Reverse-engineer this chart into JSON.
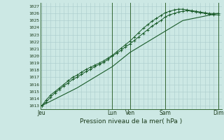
{
  "background_color": "#cce8e4",
  "grid_color": "#aacccc",
  "line_color": "#1a5c2a",
  "vline_color": "#336633",
  "title": "Pression niveau de la mer( hPa )",
  "ylabel_values": [
    1013,
    1014,
    1015,
    1016,
    1017,
    1018,
    1019,
    1020,
    1021,
    1022,
    1023,
    1024,
    1025,
    1026,
    1027
  ],
  "ylim": [
    1012.5,
    1027.5
  ],
  "x_ticks": [
    0,
    96,
    120,
    168,
    240
  ],
  "x_tick_labels": [
    "Jeu",
    "Lun",
    "Ven",
    "Sam",
    "Dim"
  ],
  "vlines_x": [
    96,
    120,
    168,
    240
  ],
  "xlim": [
    -2,
    245
  ],
  "line1_x": [
    0,
    6,
    12,
    18,
    24,
    30,
    36,
    42,
    48,
    54,
    60,
    66,
    72,
    78,
    84,
    90,
    96,
    102,
    108,
    114,
    120,
    126,
    132,
    138,
    144,
    150,
    156,
    162,
    168,
    174,
    180,
    186,
    192,
    198,
    204,
    210,
    216,
    222,
    228,
    234,
    240
  ],
  "line1_y": [
    1013.0,
    1013.5,
    1014.2,
    1014.8,
    1015.3,
    1015.8,
    1016.2,
    1016.7,
    1017.0,
    1017.4,
    1017.8,
    1018.1,
    1018.5,
    1018.8,
    1019.1,
    1019.5,
    1020.0,
    1020.4,
    1020.8,
    1021.3,
    1021.7,
    1022.2,
    1022.7,
    1023.2,
    1023.7,
    1024.2,
    1024.6,
    1025.0,
    1025.5,
    1025.8,
    1026.0,
    1026.2,
    1026.3,
    1026.4,
    1026.3,
    1026.2,
    1026.1,
    1026.0,
    1025.9,
    1025.8,
    1025.8
  ],
  "line2_x": [
    0,
    6,
    12,
    18,
    24,
    30,
    36,
    42,
    48,
    54,
    60,
    66,
    72,
    78,
    84,
    90,
    96,
    102,
    108,
    114,
    120,
    126,
    132,
    138,
    144,
    150,
    156,
    162,
    168,
    174,
    180,
    186,
    192,
    198,
    204,
    210,
    216,
    222,
    228,
    234,
    240
  ],
  "line2_y": [
    1013.0,
    1013.8,
    1014.5,
    1015.0,
    1015.5,
    1016.0,
    1016.5,
    1017.0,
    1017.3,
    1017.7,
    1018.1,
    1018.4,
    1018.7,
    1019.0,
    1019.3,
    1019.7,
    1020.1,
    1020.6,
    1021.1,
    1021.6,
    1022.1,
    1022.7,
    1023.3,
    1023.9,
    1024.4,
    1024.9,
    1025.3,
    1025.7,
    1026.1,
    1026.3,
    1026.5,
    1026.6,
    1026.6,
    1026.5,
    1026.4,
    1026.3,
    1026.2,
    1026.1,
    1026.0,
    1026.0,
    1026.0
  ],
  "line3_x": [
    0,
    48,
    96,
    120,
    168,
    192,
    240
  ],
  "line3_y": [
    1013.0,
    1015.5,
    1018.5,
    1020.5,
    1023.5,
    1025.0,
    1026.0
  ]
}
